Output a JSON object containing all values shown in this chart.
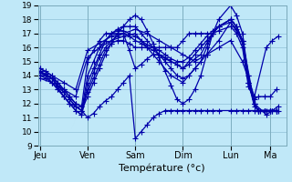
{
  "xlabel": "Température (°c)",
  "bg_color": "#c0e8f8",
  "line_color": "#0000aa",
  "marker": "+",
  "markersize": 4,
  "linewidth": 0.9,
  "ylim": [
    9,
    19
  ],
  "yticks": [
    9,
    10,
    11,
    12,
    13,
    14,
    15,
    16,
    17,
    18,
    19
  ],
  "xlim": [
    -2,
    248
  ],
  "day_positions": [
    0,
    48,
    96,
    144,
    192,
    232
  ],
  "day_labels": [
    "Jeu",
    "Ven",
    "Sam",
    "Dim",
    "Lun",
    "Ma"
  ],
  "series": [
    {
      "x": [
        0,
        6,
        12,
        18,
        24,
        30,
        36,
        42,
        48,
        54,
        60,
        66,
        72,
        78,
        84,
        90,
        96,
        102,
        108,
        114,
        120,
        126,
        132,
        138,
        144,
        150,
        156,
        162,
        168,
        174,
        180,
        192,
        198,
        204,
        210,
        216,
        222,
        228,
        234,
        240
      ],
      "y": [
        14.0,
        14.0,
        13.8,
        13.2,
        12.5,
        12.0,
        11.8,
        11.5,
        11.0,
        11.3,
        11.8,
        12.2,
        12.5,
        13.0,
        13.5,
        14.0,
        9.5,
        10.0,
        10.5,
        11.0,
        11.3,
        11.5,
        11.5,
        11.5,
        11.5,
        11.5,
        11.5,
        11.5,
        11.5,
        11.5,
        11.5,
        11.5,
        11.5,
        11.5,
        11.5,
        11.5,
        11.5,
        11.5,
        11.5,
        11.5
      ]
    },
    {
      "x": [
        0,
        6,
        12,
        18,
        24,
        30,
        36,
        42,
        48,
        54,
        60,
        66,
        72,
        78,
        84,
        90,
        96,
        102,
        108,
        114,
        120,
        126,
        132,
        138,
        144,
        150,
        156,
        162,
        168,
        174,
        180,
        192,
        198,
        204,
        210,
        216,
        220,
        226,
        232,
        238
      ],
      "y": [
        14.2,
        14.1,
        13.8,
        13.3,
        12.8,
        12.3,
        11.8,
        11.5,
        12.5,
        13.5,
        14.5,
        15.5,
        16.3,
        17.0,
        17.5,
        18.0,
        18.3,
        18.0,
        17.2,
        16.3,
        15.3,
        14.3,
        13.3,
        12.3,
        12.0,
        12.3,
        13.0,
        14.0,
        15.5,
        17.0,
        18.0,
        19.0,
        18.3,
        17.0,
        14.0,
        12.0,
        11.5,
        11.5,
        11.5,
        11.5
      ]
    },
    {
      "x": [
        0,
        6,
        12,
        18,
        24,
        30,
        36,
        42,
        48,
        54,
        60,
        66,
        72,
        78,
        84,
        90,
        96,
        102,
        108,
        114,
        120,
        126,
        132,
        138,
        144,
        150,
        156,
        162,
        168,
        174,
        180,
        192,
        198,
        204,
        210,
        216,
        220,
        226,
        232,
        238
      ],
      "y": [
        14.3,
        14.0,
        13.5,
        13.0,
        12.5,
        12.0,
        11.5,
        11.2,
        13.5,
        14.5,
        15.5,
        16.5,
        17.0,
        17.3,
        17.5,
        17.5,
        17.5,
        17.0,
        16.5,
        16.0,
        15.5,
        15.0,
        14.5,
        14.0,
        13.8,
        14.0,
        14.5,
        15.0,
        16.0,
        17.0,
        17.5,
        18.0,
        17.5,
        16.5,
        14.0,
        12.0,
        11.5,
        11.5,
        11.5,
        11.5
      ]
    },
    {
      "x": [
        0,
        6,
        12,
        18,
        24,
        30,
        36,
        42,
        48,
        54,
        60,
        66,
        72,
        78,
        84,
        90,
        96,
        102,
        108,
        114,
        120,
        126,
        132,
        138,
        144,
        150,
        156,
        162,
        168,
        174,
        180,
        192,
        198,
        204,
        210,
        216,
        220,
        226,
        232,
        238
      ],
      "y": [
        14.3,
        14.1,
        13.8,
        13.5,
        13.0,
        12.5,
        12.0,
        11.8,
        12.8,
        13.8,
        14.8,
        15.8,
        16.3,
        16.5,
        16.5,
        16.3,
        16.0,
        16.0,
        16.0,
        16.0,
        16.0,
        16.0,
        16.0,
        16.0,
        16.5,
        17.0,
        17.0,
        17.0,
        17.0,
        17.0,
        17.5,
        18.0,
        17.5,
        16.5,
        13.5,
        11.8,
        11.5,
        11.5,
        11.5,
        11.5
      ]
    },
    {
      "x": [
        0,
        6,
        12,
        18,
        24,
        30,
        36,
        42,
        48,
        54,
        60,
        66,
        72,
        78,
        84,
        90,
        96,
        102,
        108,
        114,
        120,
        126,
        132,
        138,
        144,
        150,
        156,
        162,
        168,
        174,
        180,
        192,
        198,
        204,
        210,
        216,
        220,
        226,
        232,
        238
      ],
      "y": [
        14.5,
        14.3,
        14.0,
        13.5,
        13.0,
        12.5,
        12.0,
        11.8,
        15.0,
        15.8,
        16.5,
        17.0,
        17.0,
        17.0,
        17.0,
        16.8,
        16.5,
        16.3,
        16.0,
        15.8,
        15.5,
        15.2,
        15.0,
        14.8,
        14.5,
        15.0,
        15.5,
        16.0,
        16.5,
        17.0,
        17.5,
        18.0,
        17.5,
        16.5,
        13.5,
        12.0,
        11.5,
        11.5,
        11.5,
        11.5
      ]
    },
    {
      "x": [
        0,
        6,
        12,
        18,
        24,
        30,
        36,
        42,
        48,
        54,
        60,
        66,
        72,
        78,
        84,
        90,
        96,
        102,
        108,
        114,
        120,
        126,
        132,
        138,
        144,
        150,
        156,
        162,
        168,
        174,
        180,
        192,
        198,
        204,
        210,
        216,
        220,
        226,
        232,
        238
      ],
      "y": [
        14.2,
        14.0,
        13.8,
        13.3,
        12.8,
        12.3,
        11.8,
        11.5,
        14.0,
        15.0,
        16.0,
        16.5,
        17.0,
        17.2,
        17.2,
        17.0,
        16.8,
        16.5,
        16.2,
        16.0,
        15.8,
        15.5,
        15.2,
        15.0,
        15.0,
        15.3,
        15.8,
        16.3,
        16.8,
        17.2,
        17.5,
        17.8,
        17.3,
        16.3,
        13.5,
        12.0,
        11.5,
        11.5,
        11.5,
        11.5
      ]
    },
    {
      "x": [
        0,
        6,
        12,
        18,
        24,
        30,
        36,
        42,
        48,
        54,
        60,
        66,
        72,
        78,
        84,
        90,
        96,
        102,
        108,
        114,
        120,
        126,
        132,
        138,
        144,
        150,
        156,
        162,
        168,
        174,
        180,
        192,
        198,
        204,
        210,
        216,
        220,
        226,
        232,
        238
      ],
      "y": [
        14.0,
        13.8,
        13.5,
        13.0,
        12.5,
        12.0,
        11.5,
        11.2,
        13.0,
        14.2,
        15.3,
        16.0,
        16.5,
        16.8,
        17.0,
        15.8,
        14.5,
        14.8,
        15.2,
        15.5,
        15.5,
        15.3,
        15.0,
        14.8,
        14.5,
        14.8,
        15.2,
        15.5,
        16.3,
        17.0,
        17.2,
        17.5,
        17.0,
        16.0,
        13.2,
        12.3,
        12.5,
        12.5,
        12.5,
        13.0
      ]
    },
    {
      "x": [
        0,
        12,
        24,
        36,
        48,
        60,
        72,
        84,
        96,
        108,
        120,
        132,
        144,
        156,
        168,
        180,
        192,
        204,
        216,
        228,
        234,
        240
      ],
      "y": [
        13.8,
        13.5,
        13.0,
        12.5,
        15.3,
        16.0,
        16.5,
        16.8,
        17.0,
        16.0,
        15.0,
        14.0,
        13.5,
        14.5,
        15.5,
        16.0,
        16.5,
        15.0,
        12.5,
        16.0,
        16.5,
        16.8
      ]
    },
    {
      "x": [
        0,
        12,
        24,
        36,
        48,
        60,
        72,
        84,
        96,
        108,
        120,
        132,
        144,
        156,
        168,
        180,
        192,
        204,
        216,
        228,
        234,
        240
      ],
      "y": [
        14.5,
        14.0,
        13.5,
        13.0,
        15.8,
        16.3,
        16.8,
        17.0,
        17.3,
        17.0,
        16.5,
        16.0,
        15.5,
        15.0,
        15.5,
        16.5,
        17.8,
        16.5,
        12.0,
        11.2,
        11.5,
        11.8
      ]
    }
  ]
}
